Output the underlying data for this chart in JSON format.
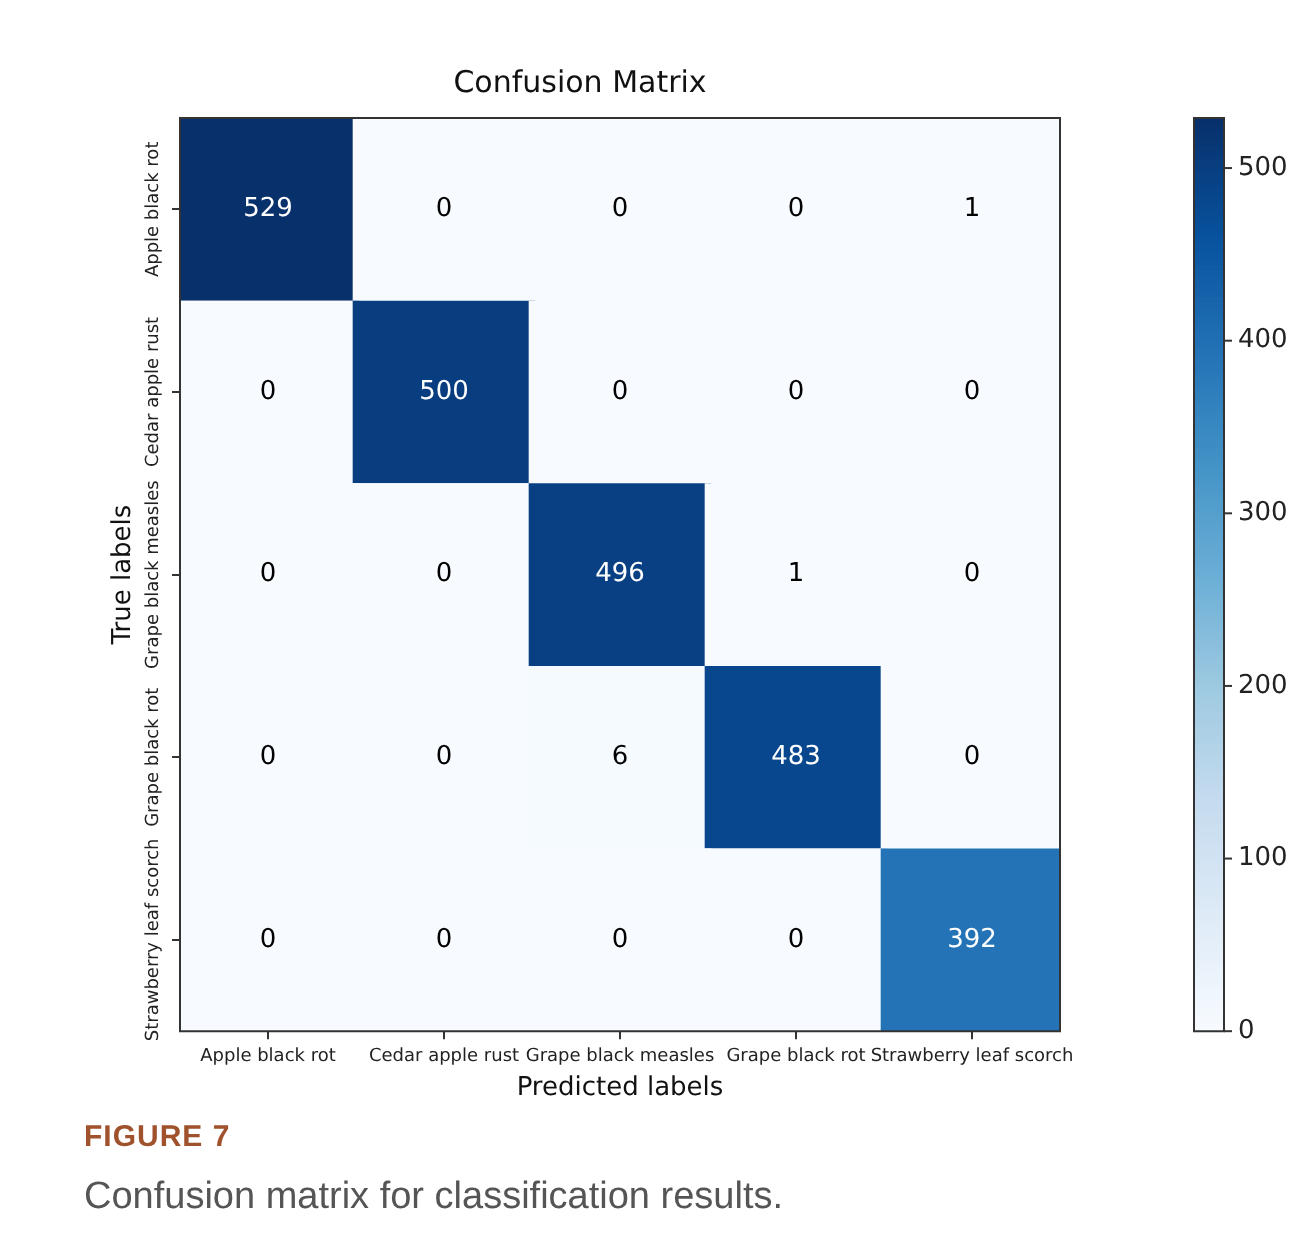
{
  "chart_data": {
    "type": "heatmap",
    "title": "Confusion Matrix",
    "xlabel": "Predicted labels",
    "ylabel": "True labels",
    "categories": [
      "Apple black rot",
      "Cedar apple rust",
      "Grape black measles",
      "Grape black rot",
      "Strawberry leaf scorch"
    ],
    "y_categories": [
      "Apple black rot",
      "Cedar apple rust",
      "Grape black measles",
      "Grape black rot",
      "Strawberry leaf scorch"
    ],
    "cells": [
      [
        529,
        0,
        0,
        0,
        1
      ],
      [
        0,
        500,
        0,
        0,
        0
      ],
      [
        0,
        0,
        496,
        1,
        0
      ],
      [
        0,
        0,
        6,
        483,
        0
      ],
      [
        0,
        0,
        0,
        0,
        392
      ]
    ],
    "data_labels": true,
    "clim": [
      0,
      529
    ],
    "cticks": [
      0,
      100,
      200,
      300,
      400,
      500
    ],
    "annotations": [
      "FIGURE 7",
      "Confusion matrix for classification results."
    ]
  }
}
